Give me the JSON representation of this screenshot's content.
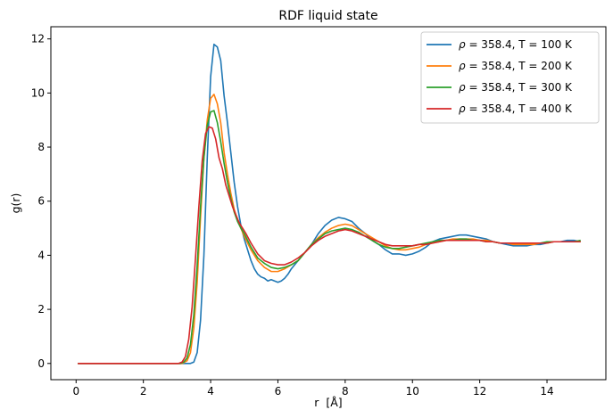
{
  "chart_data": {
    "type": "line",
    "title": "RDF liquid state",
    "xlabel": "r  [Å]",
    "ylabel": "g(r)",
    "xlim": [
      -0.75,
      15.75
    ],
    "ylim": [
      -0.6,
      12.45
    ],
    "xticks": [
      0,
      2,
      4,
      6,
      8,
      10,
      12,
      14
    ],
    "yticks": [
      0,
      2,
      4,
      6,
      8,
      10,
      12
    ],
    "xtick_labels": [
      "0",
      "2",
      "4",
      "6",
      "8",
      "10",
      "12",
      "14"
    ],
    "ytick_labels": [
      "0",
      "2",
      "4",
      "6",
      "8",
      "10",
      "12"
    ],
    "grid": false,
    "legend_position": "top-right",
    "series": [
      {
        "name": "ρ = 358.4, T = 100 K",
        "legend_prefix": "ρ",
        "legend_rest": " = 358.4, T = 100 K",
        "color": "#1f77b4",
        "x": [
          0.05,
          3.2,
          3.4,
          3.5,
          3.6,
          3.7,
          3.8,
          3.9,
          4.0,
          4.1,
          4.2,
          4.3,
          4.4,
          4.5,
          4.6,
          4.7,
          4.8,
          4.9,
          5.0,
          5.1,
          5.2,
          5.3,
          5.4,
          5.5,
          5.6,
          5.7,
          5.8,
          5.9,
          6.0,
          6.1,
          6.2,
          6.3,
          6.4,
          6.5,
          6.6,
          6.8,
          7.0,
          7.2,
          7.4,
          7.6,
          7.8,
          8.0,
          8.2,
          8.4,
          8.6,
          8.8,
          9.0,
          9.2,
          9.4,
          9.6,
          9.8,
          10.0,
          10.2,
          10.4,
          10.6,
          10.8,
          11.0,
          11.2,
          11.4,
          11.6,
          11.8,
          12.0,
          12.2,
          12.4,
          12.6,
          12.8,
          13.0,
          13.2,
          13.4,
          13.6,
          13.8,
          14.0,
          14.2,
          14.4,
          14.6,
          14.8,
          15.0
        ],
        "y": [
          0,
          0,
          0,
          0.05,
          0.4,
          1.6,
          4.0,
          7.6,
          10.6,
          11.8,
          11.7,
          11.2,
          9.9,
          8.9,
          7.8,
          6.7,
          5.8,
          5.1,
          4.6,
          4.2,
          3.8,
          3.5,
          3.3,
          3.2,
          3.15,
          3.05,
          3.1,
          3.05,
          3.0,
          3.05,
          3.15,
          3.3,
          3.5,
          3.65,
          3.8,
          4.1,
          4.4,
          4.8,
          5.1,
          5.3,
          5.4,
          5.35,
          5.25,
          5.0,
          4.8,
          4.55,
          4.4,
          4.2,
          4.05,
          4.05,
          4.0,
          4.05,
          4.15,
          4.3,
          4.5,
          4.6,
          4.65,
          4.7,
          4.75,
          4.75,
          4.7,
          4.65,
          4.6,
          4.5,
          4.45,
          4.4,
          4.35,
          4.35,
          4.35,
          4.4,
          4.4,
          4.45,
          4.5,
          4.5,
          4.55,
          4.55,
          4.5
        ]
      },
      {
        "name": "ρ = 358.4, T = 200 K",
        "legend_prefix": "ρ",
        "legend_rest": " = 358.4, T = 200 K",
        "color": "#ff7f0e",
        "x": [
          0.05,
          3.15,
          3.3,
          3.4,
          3.5,
          3.6,
          3.7,
          3.8,
          3.9,
          4.0,
          4.1,
          4.2,
          4.3,
          4.4,
          4.5,
          4.6,
          4.7,
          4.8,
          4.9,
          5.0,
          5.2,
          5.4,
          5.6,
          5.8,
          6.0,
          6.2,
          6.4,
          6.6,
          6.8,
          7.0,
          7.2,
          7.4,
          7.6,
          7.8,
          8.0,
          8.2,
          8.4,
          8.6,
          8.8,
          9.0,
          9.2,
          9.4,
          9.6,
          9.8,
          10.0,
          10.2,
          10.4,
          10.6,
          10.8,
          11.0,
          11.2,
          11.4,
          11.6,
          11.8,
          12.0,
          12.2,
          12.4,
          12.6,
          12.8,
          13.0,
          13.2,
          13.4,
          13.6,
          13.8,
          14.0,
          14.2,
          14.4,
          14.6,
          14.8,
          15.0
        ],
        "y": [
          0,
          0,
          0.1,
          0.4,
          1.3,
          3.0,
          5.4,
          7.6,
          9.0,
          9.8,
          9.95,
          9.6,
          8.9,
          7.8,
          7.0,
          6.3,
          5.7,
          5.3,
          5.0,
          4.7,
          4.2,
          3.8,
          3.55,
          3.4,
          3.4,
          3.5,
          3.65,
          3.8,
          4.1,
          4.4,
          4.65,
          4.85,
          5.0,
          5.1,
          5.15,
          5.1,
          4.95,
          4.8,
          4.65,
          4.5,
          4.35,
          4.25,
          4.2,
          4.2,
          4.25,
          4.3,
          4.4,
          4.45,
          4.5,
          4.55,
          4.6,
          4.6,
          4.6,
          4.6,
          4.55,
          4.55,
          4.5,
          4.45,
          4.45,
          4.4,
          4.4,
          4.4,
          4.4,
          4.45,
          4.45,
          4.5,
          4.5,
          4.5,
          4.5,
          4.5
        ]
      },
      {
        "name": "ρ = 358.4, T = 300 K",
        "legend_prefix": "ρ",
        "legend_rest": " = 358.4, T = 300 K",
        "color": "#2ca02c",
        "x": [
          0.05,
          3.1,
          3.2,
          3.3,
          3.4,
          3.5,
          3.6,
          3.7,
          3.8,
          3.9,
          4.0,
          4.1,
          4.2,
          4.3,
          4.4,
          4.5,
          4.6,
          4.7,
          4.8,
          4.9,
          5.0,
          5.2,
          5.4,
          5.6,
          5.8,
          6.0,
          6.2,
          6.4,
          6.6,
          6.8,
          7.0,
          7.2,
          7.4,
          7.6,
          7.8,
          8.0,
          8.2,
          8.4,
          8.6,
          8.8,
          9.0,
          9.2,
          9.4,
          9.6,
          9.8,
          10.0,
          10.2,
          10.4,
          10.6,
          10.8,
          11.0,
          11.2,
          11.4,
          11.6,
          11.8,
          12.0,
          12.2,
          12.4,
          12.6,
          12.8,
          13.0,
          13.2,
          13.4,
          13.6,
          13.8,
          14.0,
          14.2,
          14.4,
          14.6,
          14.8,
          15.0
        ],
        "y": [
          0,
          0,
          0.05,
          0.2,
          0.7,
          1.8,
          3.6,
          5.8,
          7.6,
          8.8,
          9.3,
          9.35,
          8.9,
          8.2,
          7.4,
          6.7,
          6.1,
          5.6,
          5.25,
          5.0,
          4.8,
          4.3,
          3.9,
          3.7,
          3.55,
          3.5,
          3.55,
          3.65,
          3.8,
          4.1,
          4.4,
          4.6,
          4.8,
          4.9,
          4.95,
          5.0,
          4.95,
          4.85,
          4.7,
          4.55,
          4.4,
          4.3,
          4.25,
          4.25,
          4.3,
          4.35,
          4.4,
          4.45,
          4.5,
          4.55,
          4.55,
          4.55,
          4.6,
          4.6,
          4.55,
          4.55,
          4.5,
          4.5,
          4.45,
          4.45,
          4.45,
          4.45,
          4.45,
          4.45,
          4.45,
          4.5,
          4.5,
          4.5,
          4.5,
          4.5,
          4.55
        ]
      },
      {
        "name": "ρ = 358.4, T = 400 K",
        "legend_prefix": "ρ",
        "legend_rest": " = 358.4, T = 400 K",
        "color": "#d62728",
        "x": [
          0.05,
          3.05,
          3.15,
          3.25,
          3.35,
          3.45,
          3.55,
          3.65,
          3.75,
          3.85,
          3.95,
          4.05,
          4.15,
          4.25,
          4.35,
          4.45,
          4.55,
          4.65,
          4.75,
          4.85,
          4.95,
          5.05,
          5.2,
          5.4,
          5.6,
          5.8,
          6.0,
          6.2,
          6.4,
          6.6,
          6.8,
          7.0,
          7.2,
          7.4,
          7.6,
          7.8,
          8.0,
          8.2,
          8.4,
          8.6,
          8.8,
          9.0,
          9.2,
          9.4,
          9.6,
          9.8,
          10.0,
          10.2,
          10.4,
          10.6,
          10.8,
          11.0,
          11.2,
          11.4,
          11.6,
          11.8,
          12.0,
          12.2,
          12.4,
          12.6,
          12.8,
          13.0,
          13.2,
          13.4,
          13.6,
          13.8,
          14.0,
          14.2,
          14.4,
          14.6,
          14.8,
          15.0
        ],
        "y": [
          0,
          0,
          0.05,
          0.25,
          0.9,
          2.1,
          3.9,
          5.8,
          7.5,
          8.5,
          8.75,
          8.7,
          8.3,
          7.6,
          7.2,
          6.6,
          6.2,
          5.8,
          5.5,
          5.2,
          5.0,
          4.8,
          4.45,
          4.05,
          3.8,
          3.7,
          3.65,
          3.65,
          3.75,
          3.9,
          4.1,
          4.35,
          4.55,
          4.7,
          4.8,
          4.9,
          4.95,
          4.9,
          4.8,
          4.7,
          4.6,
          4.5,
          4.4,
          4.35,
          4.35,
          4.35,
          4.35,
          4.4,
          4.4,
          4.45,
          4.5,
          4.55,
          4.55,
          4.55,
          4.55,
          4.55,
          4.55,
          4.5,
          4.5,
          4.45,
          4.45,
          4.45,
          4.45,
          4.45,
          4.45,
          4.45,
          4.45,
          4.5,
          4.5,
          4.5,
          4.5,
          4.5
        ]
      }
    ]
  }
}
